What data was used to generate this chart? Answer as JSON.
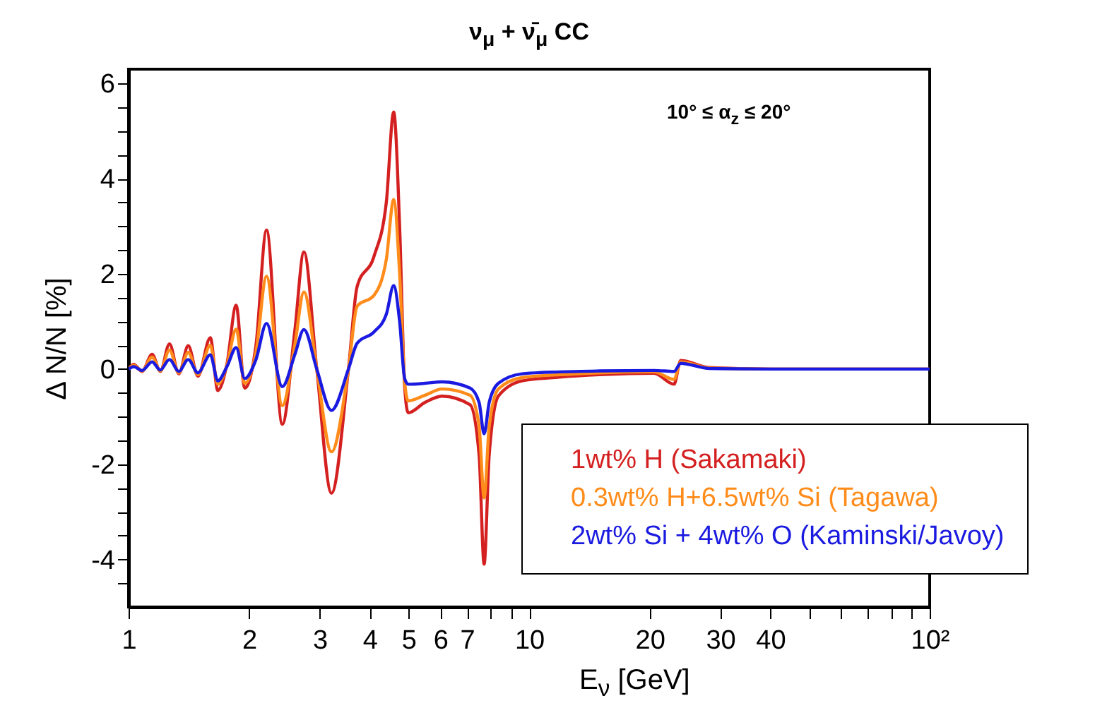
{
  "chart_data": {
    "type": "line",
    "title": "ν$_{μ}$ + ν̄$_{μ}$ CC",
    "xlabel": "E$_{ν}$ [GeV]",
    "ylabel": "Δ N/N [%]",
    "annotations": [
      "10° ≤ α$_{z}$ ≤ 20°"
    ],
    "x": [
      1,
      1.03,
      1.08,
      1.145,
      1.2,
      1.265,
      1.335,
      1.409,
      1.49,
      1.6,
      1.67,
      1.76,
      1.856,
      1.95,
      2.08,
      2.21,
      2.42,
      2.6,
      2.74,
      2.95,
      3.21,
      3.54,
      3.72,
      4.1,
      4.4,
      4.59,
      4.75,
      4.89,
      4.99,
      5.5,
      6.06,
      7.12,
      7.5,
      7.72,
      7.95,
      8.38,
      9.6,
      11.9,
      15,
      20.5,
      23.0,
      23.9,
      28.2,
      40,
      100
    ],
    "series": [
      {
        "name": "1wt% H (Sakamaki)",
        "color": "#d42020",
        "values": [
          0,
          0.1,
          -0.05,
          0.31,
          -0.05,
          0.53,
          -0.1,
          0.49,
          -0.15,
          0.66,
          -0.45,
          0.1,
          1.34,
          -0.4,
          0.5,
          2.92,
          -1.16,
          0.8,
          2.46,
          0,
          -2.61,
          0,
          1.73,
          2.37,
          3.5,
          5.4,
          3.0,
          -0.37,
          -0.92,
          -0.7,
          -0.57,
          -0.75,
          -1.8,
          -4.1,
          -1.8,
          -0.57,
          -0.25,
          -0.17,
          -0.12,
          -0.09,
          -0.32,
          0.18,
          0.03,
          0,
          0
        ]
      },
      {
        "name": "0.3wt% H+6.5wt% Si (Tagawa)",
        "color": "#ff8c1a",
        "values": [
          0,
          0.08,
          -0.04,
          0.25,
          -0.04,
          0.4,
          -0.08,
          0.35,
          -0.12,
          0.5,
          -0.32,
          0.08,
          0.84,
          -0.3,
          0.35,
          1.95,
          -0.77,
          0.5,
          1.62,
          0,
          -1.74,
          0,
          1.32,
          1.55,
          2.3,
          3.56,
          2.0,
          -0.27,
          -0.67,
          -0.55,
          -0.42,
          -0.55,
          -1.2,
          -2.71,
          -1.2,
          -0.42,
          -0.18,
          -0.12,
          -0.08,
          -0.06,
          -0.22,
          0.15,
          0.02,
          0,
          0
        ]
      },
      {
        "name": "2wt% Si + 4wt% O (Kaminski/Javoy)",
        "color": "#1a1ae0",
        "values": [
          0,
          0.05,
          -0.03,
          0.15,
          -0.02,
          0.2,
          -0.05,
          0.2,
          -0.08,
          0.3,
          -0.25,
          0.05,
          0.45,
          -0.2,
          0.2,
          0.96,
          -0.37,
          0.3,
          0.83,
          0,
          -0.87,
          0,
          0.54,
          0.78,
          1.15,
          1.75,
          1.0,
          -0.2,
          -0.32,
          -0.3,
          -0.27,
          -0.4,
          -0.7,
          -1.36,
          -0.7,
          -0.3,
          -0.1,
          -0.06,
          -0.04,
          -0.03,
          -0.05,
          0.12,
          0.01,
          0,
          0
        ]
      }
    ],
    "log": "x",
    "xlim": [
      1,
      100
    ],
    "xticks": [
      1,
      2,
      3,
      4,
      5,
      6,
      7,
      {
        "value": 8,
        "label": null
      },
      {
        "value": 9,
        "label": null
      },
      10,
      20,
      30,
      40,
      {
        "value": 50,
        "label": null
      },
      {
        "value": 60,
        "label": null
      },
      {
        "value": 70,
        "label": null
      },
      {
        "value": 80,
        "label": null
      },
      {
        "value": 90,
        "label": null
      },
      {
        "value": 100,
        "label": "10²"
      }
    ],
    "ylim": [
      -5,
      6.3
    ],
    "yticks": [
      {
        "value": -4.5,
        "label": null
      },
      -4,
      {
        "value": -3.5,
        "label": null
      },
      {
        "value": -3,
        "label": null
      },
      {
        "value": -2.5,
        "label": null
      },
      -2,
      {
        "value": -1.5,
        "label": null
      },
      {
        "value": -1,
        "label": null
      },
      {
        "value": -0.5,
        "label": null
      },
      0,
      {
        "value": 0.5,
        "label": null
      },
      {
        "value": 1,
        "label": null
      },
      {
        "value": 1.5,
        "label": null
      },
      2,
      {
        "value": 2.5,
        "label": null
      },
      {
        "value": 3,
        "label": null
      },
      {
        "value": 3.5,
        "label": null
      },
      4,
      {
        "value": 4.5,
        "label": null
      },
      {
        "value": 5,
        "label": null
      },
      {
        "value": 5.5,
        "label": null
      },
      6
    ],
    "grid": false,
    "legend": "bottom right",
    "line_style": "solid",
    "marker": "none"
  }
}
